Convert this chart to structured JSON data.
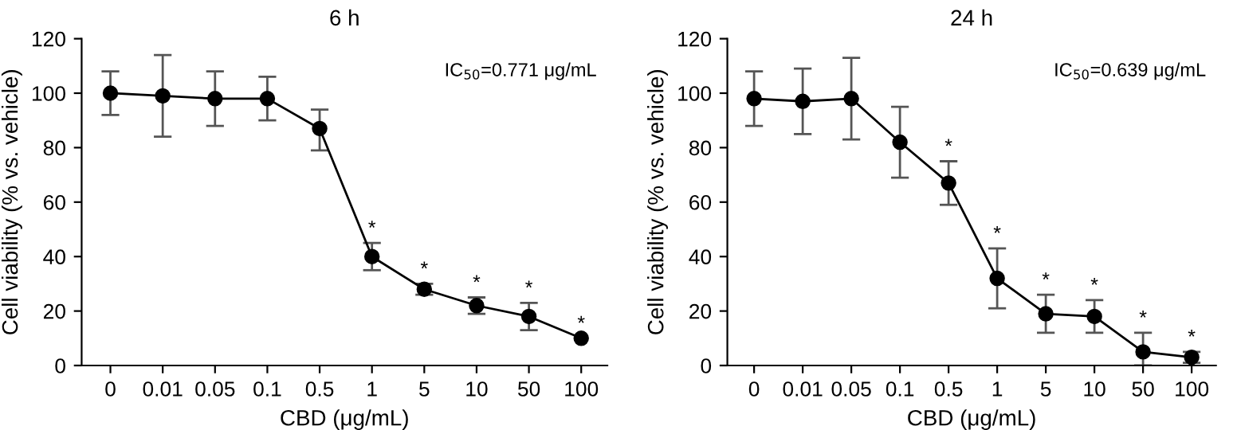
{
  "chart_data": [
    {
      "type": "line",
      "title": "6 h",
      "xlabel": "CBD (μg/mL)",
      "ylabel": "Cell viability (% vs. vehicle)",
      "categories": [
        "0",
        "0.01",
        "0.05",
        "0.1",
        "0.5",
        "1",
        "5",
        "10",
        "50",
        "100"
      ],
      "series": [
        {
          "color": "#000000",
          "values": [
            100,
            99,
            98,
            98,
            87,
            40,
            28,
            22,
            18,
            10
          ],
          "errors": [
            [
              92,
              108
            ],
            [
              84,
              114
            ],
            [
              88,
              108
            ],
            [
              90,
              106
            ],
            [
              79,
              94
            ],
            [
              35,
              45
            ],
            [
              26,
              30
            ],
            [
              19,
              25
            ],
            [
              13,
              23
            ],
            null
          ]
        }
      ],
      "ylim": [
        0,
        120
      ],
      "yticks": [
        0,
        20,
        40,
        60,
        80,
        100,
        120
      ],
      "grid": false,
      "legend": false,
      "marker": "circle",
      "line_style": "solid",
      "annotations": [
        "IC$_{50}$=0.771 μg/mL",
        {
          "text": "*",
          "x": "1",
          "y": 45
        },
        {
          "text": "*",
          "x": "5",
          "y": 30
        },
        {
          "text": "*",
          "x": "10",
          "y": 25
        },
        {
          "text": "*",
          "x": "50",
          "y": 23
        },
        {
          "text": "*",
          "x": "100",
          "y": 10
        }
      ]
    },
    {
      "type": "line",
      "title": "24 h",
      "xlabel": "CBD (μg/mL)",
      "ylabel": "Cell viability (% vs. vehicle)",
      "categories": [
        "0",
        "0.01",
        "0.05",
        "0.1",
        "0.5",
        "1",
        "5",
        "10",
        "50",
        "100"
      ],
      "series": [
        {
          "color": "#000000",
          "values": [
            98,
            97,
            98,
            82,
            67,
            32,
            19,
            18,
            5,
            3
          ],
          "errors": [
            [
              88,
              108
            ],
            [
              85,
              109
            ],
            [
              83,
              113
            ],
            [
              69,
              95
            ],
            [
              59,
              75
            ],
            [
              21,
              43
            ],
            [
              12,
              26
            ],
            [
              12,
              24
            ],
            [
              0,
              12
            ],
            [
              1,
              5
            ]
          ]
        }
      ],
      "ylim": [
        0,
        120
      ],
      "yticks": [
        0,
        20,
        40,
        60,
        80,
        100,
        120
      ],
      "grid": false,
      "legend": false,
      "marker": "circle",
      "line_style": "solid",
      "annotations": [
        "IC$_{50}$=0.639 μg/mL",
        {
          "text": "*",
          "x": "0.5",
          "y": 75
        },
        {
          "text": "*",
          "x": "1",
          "y": 43
        },
        {
          "text": "*",
          "x": "5",
          "y": 26
        },
        {
          "text": "*",
          "x": "10",
          "y": 24
        },
        {
          "text": "*",
          "x": "50",
          "y": 12
        },
        {
          "text": "*",
          "x": "100",
          "y": 5
        }
      ]
    }
  ]
}
